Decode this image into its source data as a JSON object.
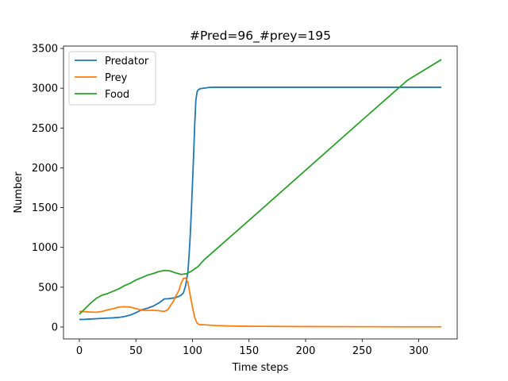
{
  "chart_data": {
    "type": "line",
    "title": "#Pred=96_#prey=195",
    "xlabel": "Time steps",
    "ylabel": "Number",
    "xlim": [
      -14,
      334
    ],
    "ylim": [
      -150,
      3530
    ],
    "xticks": [
      0,
      50,
      100,
      150,
      200,
      250,
      300
    ],
    "yticks": [
      0,
      500,
      1000,
      1500,
      2000,
      2500,
      3000,
      3500
    ],
    "grid": false,
    "legend_position": "top-left",
    "series": [
      {
        "name": "Predator",
        "color": "#1f77b4",
        "x": [
          0,
          5,
          10,
          15,
          20,
          25,
          30,
          35,
          40,
          45,
          50,
          55,
          60,
          65,
          70,
          73,
          75,
          78,
          80,
          85,
          88,
          90,
          92,
          94,
          96,
          97,
          98,
          99,
          100,
          101,
          102,
          103,
          104,
          105,
          107,
          110,
          115,
          120,
          130,
          150,
          200,
          250,
          300,
          320
        ],
        "values": [
          95,
          96,
          100,
          104,
          108,
          112,
          115,
          121,
          132,
          150,
          180,
          215,
          235,
          260,
          300,
          330,
          352,
          355,
          358,
          368,
          385,
          400,
          430,
          520,
          700,
          900,
          1150,
          1450,
          1800,
          2150,
          2550,
          2850,
          2950,
          2980,
          2995,
          3000,
          3010,
          3012,
          3012,
          3012,
          3012,
          3012,
          3012,
          3012
        ]
      },
      {
        "name": "Prey",
        "color": "#ff7f0e",
        "x": [
          0,
          5,
          10,
          15,
          20,
          25,
          30,
          35,
          40,
          45,
          50,
          55,
          60,
          65,
          70,
          75,
          78,
          80,
          83,
          85,
          88,
          90,
          92,
          94,
          96,
          98,
          100,
          102,
          104,
          106,
          110,
          120,
          140,
          160,
          200,
          250,
          300,
          320
        ],
        "values": [
          195,
          192,
          188,
          185,
          195,
          215,
          230,
          250,
          255,
          250,
          232,
          210,
          208,
          210,
          205,
          195,
          215,
          255,
          320,
          380,
          460,
          550,
          610,
          615,
          560,
          400,
          250,
          120,
          50,
          30,
          28,
          18,
          10,
          8,
          5,
          3,
          2,
          2
        ]
      },
      {
        "name": "Food",
        "color": "#2ca02c",
        "x": [
          0,
          5,
          10,
          15,
          20,
          25,
          30,
          35,
          40,
          45,
          50,
          55,
          60,
          65,
          70,
          75,
          80,
          85,
          90,
          95,
          100,
          105,
          110,
          150,
          200,
          250,
          290,
          320
        ],
        "values": [
          160,
          230,
          300,
          360,
          400,
          420,
          450,
          480,
          520,
          550,
          590,
          620,
          650,
          670,
          695,
          710,
          705,
          680,
          660,
          670,
          710,
          760,
          840,
          1340,
          1970,
          2600,
          3100,
          3360
        ]
      }
    ]
  }
}
